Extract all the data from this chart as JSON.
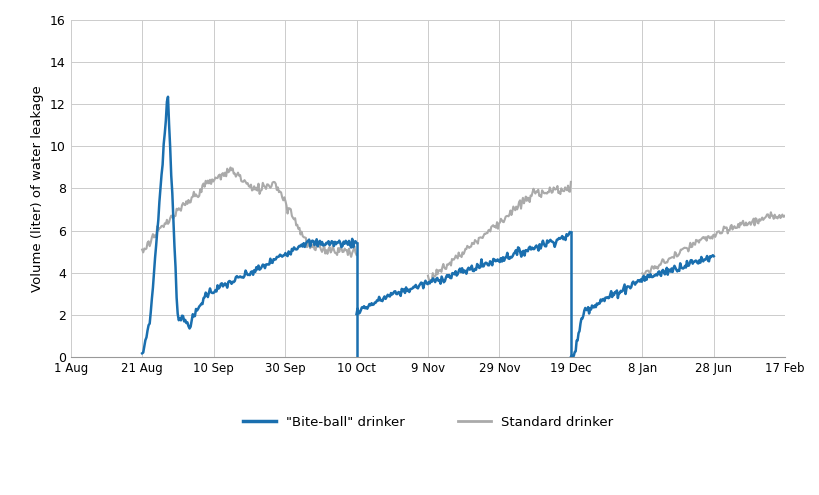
{
  "ylabel": "Volume (liter) of water leakage",
  "ylim": [
    0,
    16
  ],
  "yticks": [
    0,
    2,
    4,
    6,
    8,
    10,
    12,
    14,
    16
  ],
  "x_tick_labels": [
    "1 Aug",
    "21 Aug",
    "10 Sep",
    "30 Sep",
    "10 Oct",
    "9 Nov",
    "29 Nov",
    "19 Dec",
    "8 Jan",
    "28 Jun",
    "17 Feb"
  ],
  "blue_color": "#1a6faf",
  "gray_color": "#aaaaaa",
  "background_color": "#ffffff",
  "grid_color": "#cccccc",
  "legend_labels": [
    "\"Bite-ball\" drinker",
    "Standard drinker"
  ]
}
